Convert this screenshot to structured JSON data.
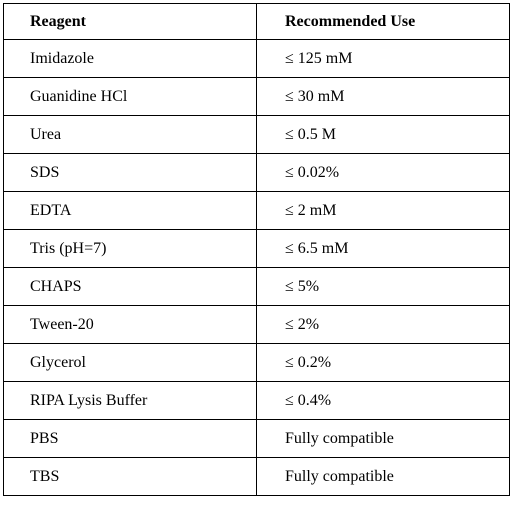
{
  "table": {
    "headers": [
      "Reagent",
      "Recommended Use"
    ],
    "rows": [
      [
        "Imidazole",
        "≤ 125 mM"
      ],
      [
        "Guanidine HCl",
        "≤ 30 mM"
      ],
      [
        "Urea",
        "≤ 0.5 M"
      ],
      [
        "SDS",
        "≤ 0.02%"
      ],
      [
        "EDTA",
        "≤ 2 mM"
      ],
      [
        "Tris (pH=7)",
        "≤ 6.5 mM"
      ],
      [
        "CHAPS",
        "≤ 5%"
      ],
      [
        "Tween-20",
        "≤ 2%"
      ],
      [
        "Glycerol",
        "≤ 0.2%"
      ],
      [
        "RIPA Lysis Buffer",
        "≤ 0.4%"
      ],
      [
        "PBS",
        "Fully compatible"
      ],
      [
        "TBS",
        "Fully compatible"
      ]
    ]
  }
}
